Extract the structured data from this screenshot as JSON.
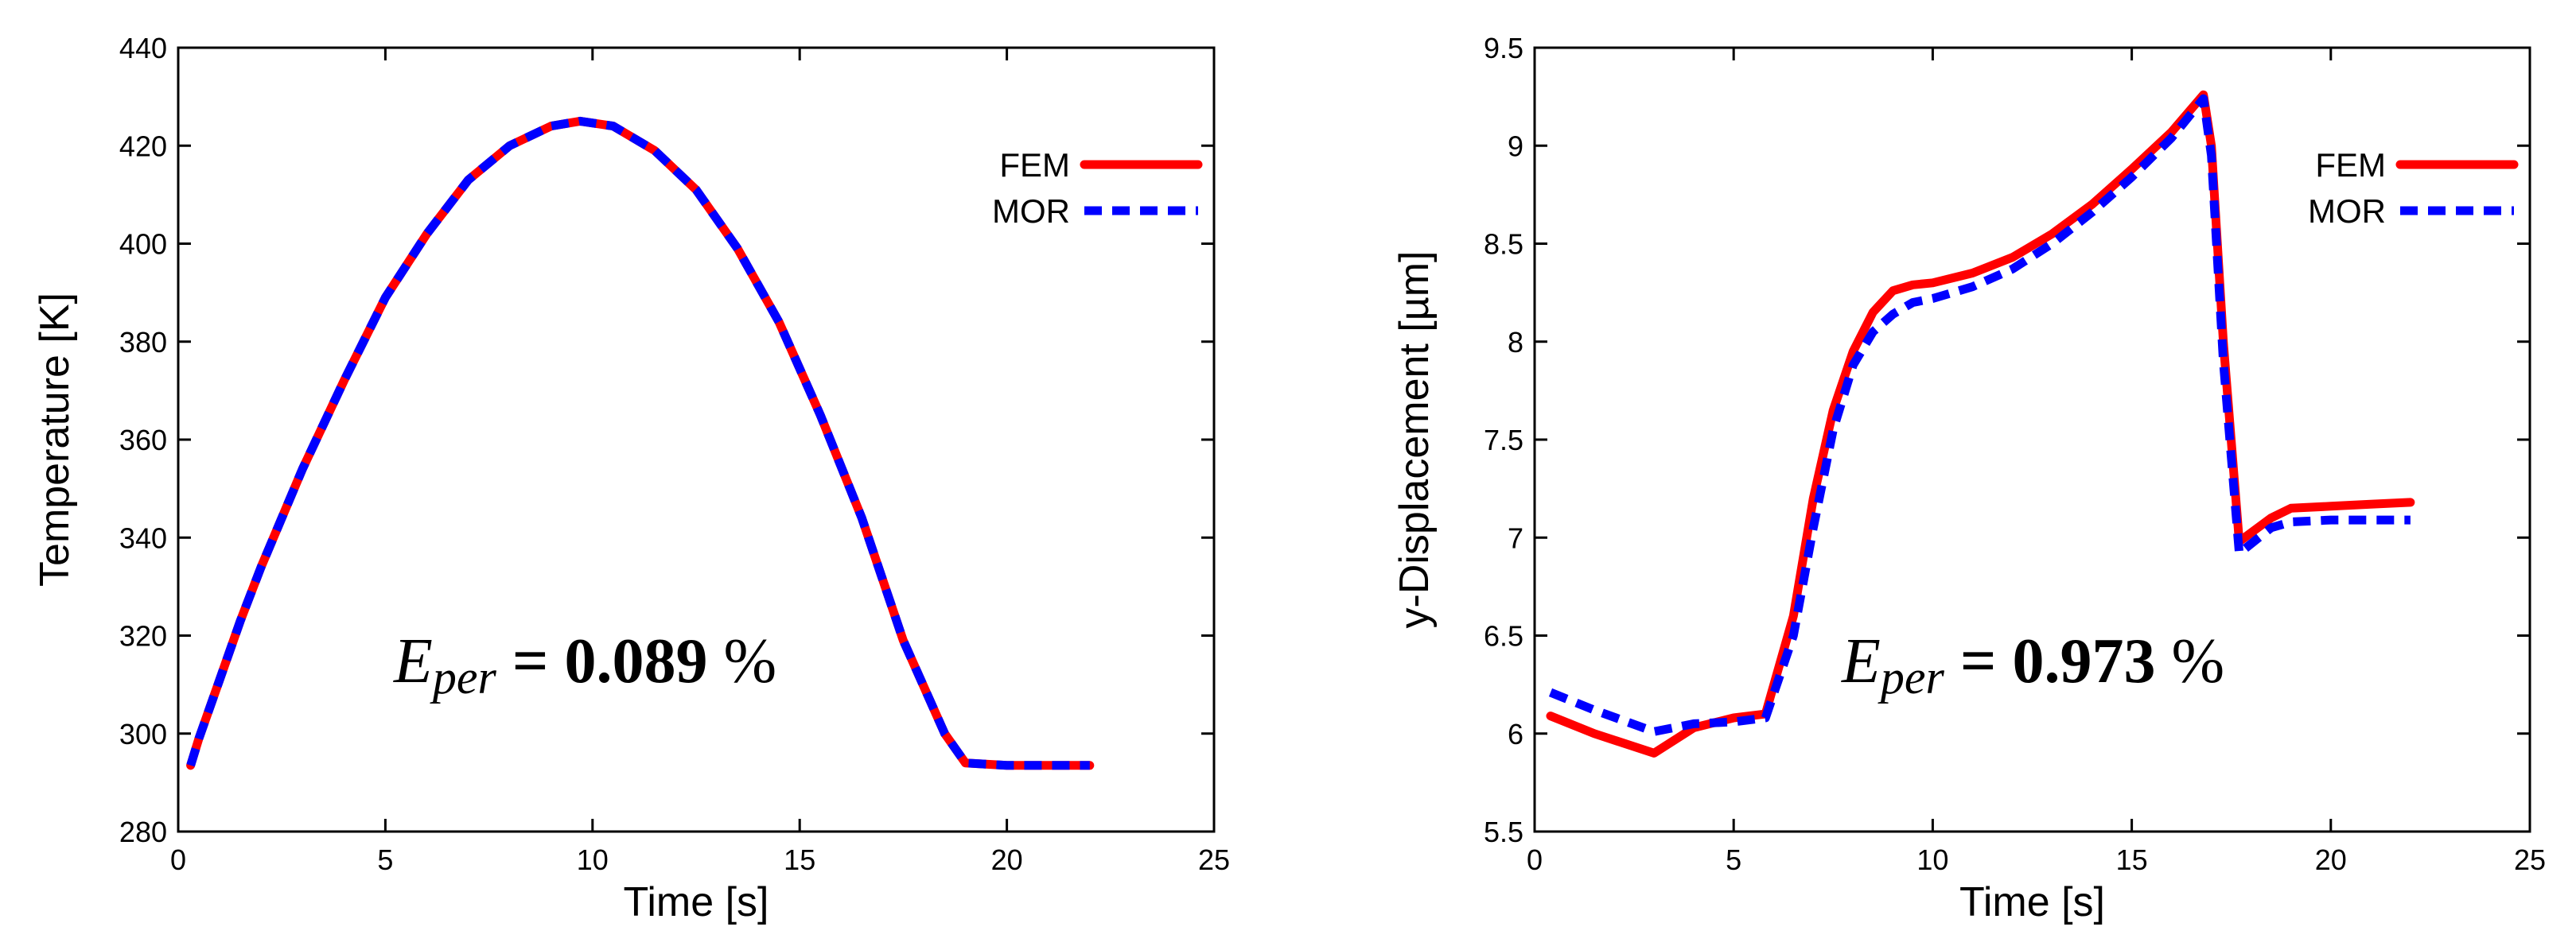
{
  "chart_data": [
    {
      "type": "line",
      "title": "",
      "xlabel": "Time [s]",
      "ylabel": "Temperature [K]",
      "xlim": [
        0,
        25
      ],
      "ylim": [
        280,
        440
      ],
      "xticks": [
        0,
        5,
        10,
        15,
        20,
        25
      ],
      "yticks": [
        280,
        300,
        320,
        340,
        360,
        380,
        400,
        420,
        440
      ],
      "grid": false,
      "legend_position": "top-right",
      "annotation": {
        "symbol": "E",
        "subscript": "per",
        "equals": " = ",
        "value": "0.089",
        "unit": " %"
      },
      "series": [
        {
          "name": "FEM",
          "color": "#ff0000",
          "style": "solid",
          "x": [
            0.3,
            0.5,
            1.0,
            1.5,
            2.0,
            3.0,
            4.0,
            5.0,
            6.0,
            7.0,
            8.0,
            9.0,
            9.7,
            10.5,
            11.5,
            12.5,
            13.5,
            14.5,
            15.5,
            16.5,
            17.5,
            18.5,
            19.0,
            20.0,
            21.0,
            22.0
          ],
          "y": [
            293.5,
            299,
            311,
            323,
            334,
            354,
            372,
            389,
            402,
            413,
            420,
            424,
            425,
            424,
            419,
            411,
            399,
            384,
            365,
            344,
            319,
            300,
            294,
            293.5,
            293.5,
            293.5
          ]
        },
        {
          "name": "MOR",
          "color": "#0000ff",
          "style": "dashed",
          "x": [
            0.3,
            0.5,
            1.0,
            1.5,
            2.0,
            3.0,
            4.0,
            5.0,
            6.0,
            7.0,
            8.0,
            9.0,
            9.7,
            10.5,
            11.5,
            12.5,
            13.5,
            14.5,
            15.5,
            16.5,
            17.5,
            18.5,
            19.0,
            20.0,
            21.0,
            22.0
          ],
          "y": [
            293.5,
            299,
            311,
            323,
            334,
            354,
            372,
            389,
            402,
            413,
            420,
            424,
            425,
            424,
            419,
            411,
            399,
            384,
            365,
            344,
            319,
            300,
            294,
            293.5,
            293.5,
            293.5
          ]
        }
      ]
    },
    {
      "type": "line",
      "title": "",
      "xlabel": "Time [s]",
      "ylabel": "y-Displacement [µm]",
      "xlim": [
        0,
        25
      ],
      "ylim": [
        5.5,
        9.5
      ],
      "xticks": [
        0,
        5,
        10,
        15,
        20,
        25
      ],
      "yticks": [
        5.5,
        6,
        6.5,
        7,
        7.5,
        8,
        8.5,
        9,
        9.5
      ],
      "grid": false,
      "legend_position": "top-right",
      "annotation": {
        "symbol": "E",
        "subscript": "per",
        "equals": " = ",
        "value": "0.973",
        "unit": " %"
      },
      "series": [
        {
          "name": "FEM",
          "color": "#ff0000",
          "style": "solid",
          "x": [
            0.4,
            1.5,
            3.0,
            4.0,
            5.0,
            5.8,
            6.5,
            7.0,
            7.5,
            8.0,
            8.5,
            9.0,
            9.5,
            10.0,
            11.0,
            12.0,
            13.0,
            14.0,
            15.0,
            16.0,
            16.8,
            17.0,
            17.3,
            17.7,
            18.5,
            19.0,
            20.0,
            21.0,
            22.0
          ],
          "y": [
            6.09,
            6.0,
            5.9,
            6.03,
            6.08,
            6.1,
            6.6,
            7.2,
            7.65,
            7.95,
            8.15,
            8.26,
            8.29,
            8.3,
            8.35,
            8.43,
            8.55,
            8.7,
            8.88,
            9.07,
            9.26,
            9.0,
            8.0,
            6.98,
            7.1,
            7.15,
            7.16,
            7.17,
            7.18
          ]
        },
        {
          "name": "MOR",
          "color": "#0000ff",
          "style": "dashed",
          "x": [
            0.4,
            1.5,
            3.0,
            4.0,
            5.0,
            5.8,
            6.5,
            7.0,
            7.5,
            8.0,
            8.5,
            9.0,
            9.5,
            10.0,
            11.0,
            12.0,
            13.0,
            14.0,
            15.0,
            16.0,
            16.8,
            17.0,
            17.3,
            17.7,
            18.5,
            19.0,
            20.0,
            21.0,
            22.0
          ],
          "y": [
            6.21,
            6.12,
            6.01,
            6.05,
            6.06,
            6.08,
            6.5,
            7.05,
            7.55,
            7.88,
            8.05,
            8.14,
            8.2,
            8.22,
            8.28,
            8.37,
            8.5,
            8.66,
            8.84,
            9.04,
            9.24,
            8.95,
            7.9,
            6.92,
            7.05,
            7.08,
            7.09,
            7.09,
            7.09
          ]
        }
      ]
    }
  ]
}
